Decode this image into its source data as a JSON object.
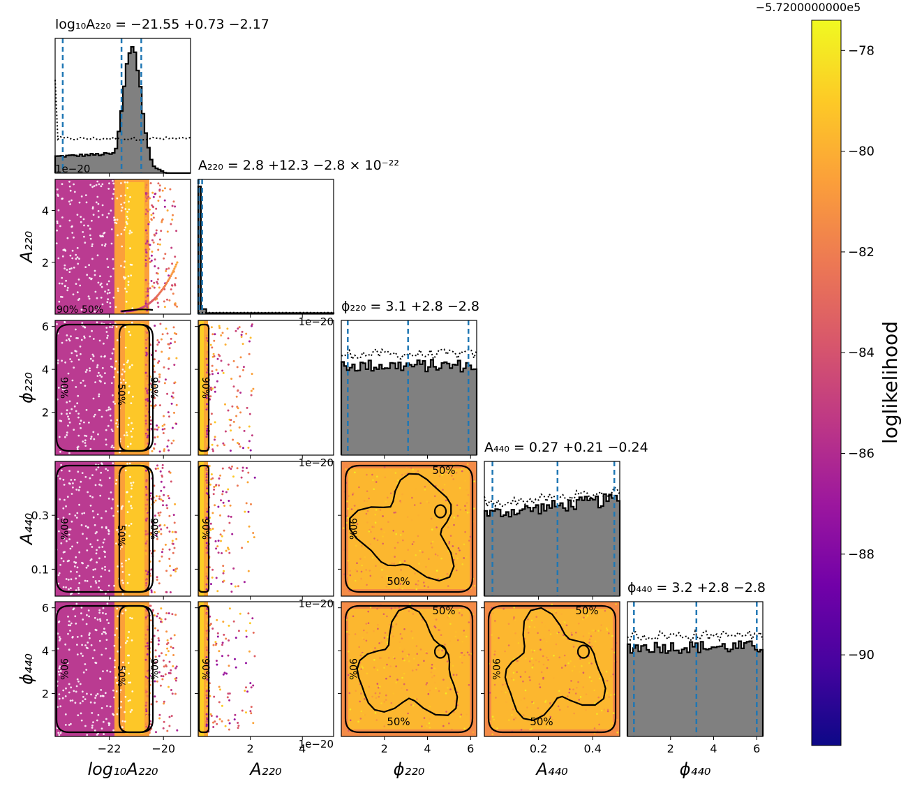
{
  "chart_data": {
    "type": "corner",
    "parameters": [
      {
        "id": "log10A220",
        "axis_label": "log₁₀A₂₂₀",
        "range": [
          -24.0,
          -19.0
        ],
        "ticks": [
          -22,
          -20
        ],
        "tick_labels": [
          "−22",
          "−20"
        ],
        "title": "log₁₀A₂₂₀ = −21.55 +0.73 −2.17",
        "quantiles": [
          -23.72,
          -21.55,
          -20.82
        ]
      },
      {
        "id": "A220",
        "axis_label": "A₂₂₀",
        "range": [
          0.0,
          5.2
        ],
        "ticks": [
          2,
          4
        ],
        "tick_labels": [
          "2",
          "4"
        ],
        "offset_label": "1e−20",
        "title": "A₂₂₀ = 2.8 +12.3 −2.8 × 10⁻²²",
        "quantiles": [
          0.0,
          0.028,
          0.151
        ]
      },
      {
        "id": "phi220",
        "axis_label": "ϕ₂₂₀",
        "range": [
          0.0,
          6.283
        ],
        "ticks": [
          2,
          4,
          6
        ],
        "tick_labels": [
          "2",
          "4",
          "6"
        ],
        "title": "ϕ₂₂₀ = 3.1 +2.8 −2.8",
        "quantiles": [
          0.3,
          3.1,
          5.9
        ]
      },
      {
        "id": "A440",
        "axis_label": "A₄₄₀",
        "range": [
          0.0,
          0.5
        ],
        "ticks": [
          0.1,
          0.3
        ],
        "tick_labels": [
          "0.1",
          "0.3"
        ],
        "xticks": [
          0.2,
          0.4
        ],
        "xtick_labels": [
          "0.2",
          "0.4"
        ],
        "title": "A₄₄₀ = 0.27 +0.21 −0.24",
        "quantiles": [
          0.03,
          0.27,
          0.48
        ]
      },
      {
        "id": "phi440",
        "axis_label": "ϕ₄₄₀",
        "range": [
          0.0,
          6.283
        ],
        "ticks": [
          2,
          4,
          6
        ],
        "tick_labels": [
          "2",
          "4",
          "6"
        ],
        "title": "ϕ₄₄₀ = 3.2 +2.8 −2.8",
        "quantiles": [
          0.3,
          3.2,
          6.0
        ]
      }
    ],
    "contour_labels": [
      "50%",
      "90%"
    ],
    "colorbar": {
      "label": "loglikelihood",
      "offset_label": "−5.7200000000e5",
      "range": [
        -91.8,
        -77.4
      ],
      "ticks": [
        -78,
        -80,
        -82,
        -84,
        -86,
        -88,
        -90
      ],
      "tick_labels": [
        "−78",
        "−80",
        "−82",
        "−84",
        "−86",
        "−88",
        "−90"
      ],
      "colormap": [
        "#0d0887",
        "#46039f",
        "#7201a8",
        "#9c179e",
        "#bd3786",
        "#d8576b",
        "#ed7953",
        "#fb9f3a",
        "#fdca26",
        "#f0f921"
      ]
    },
    "colors": {
      "hist_fill": "#808080",
      "quantile_line": "#1f77b4",
      "contour": "#000000"
    }
  }
}
